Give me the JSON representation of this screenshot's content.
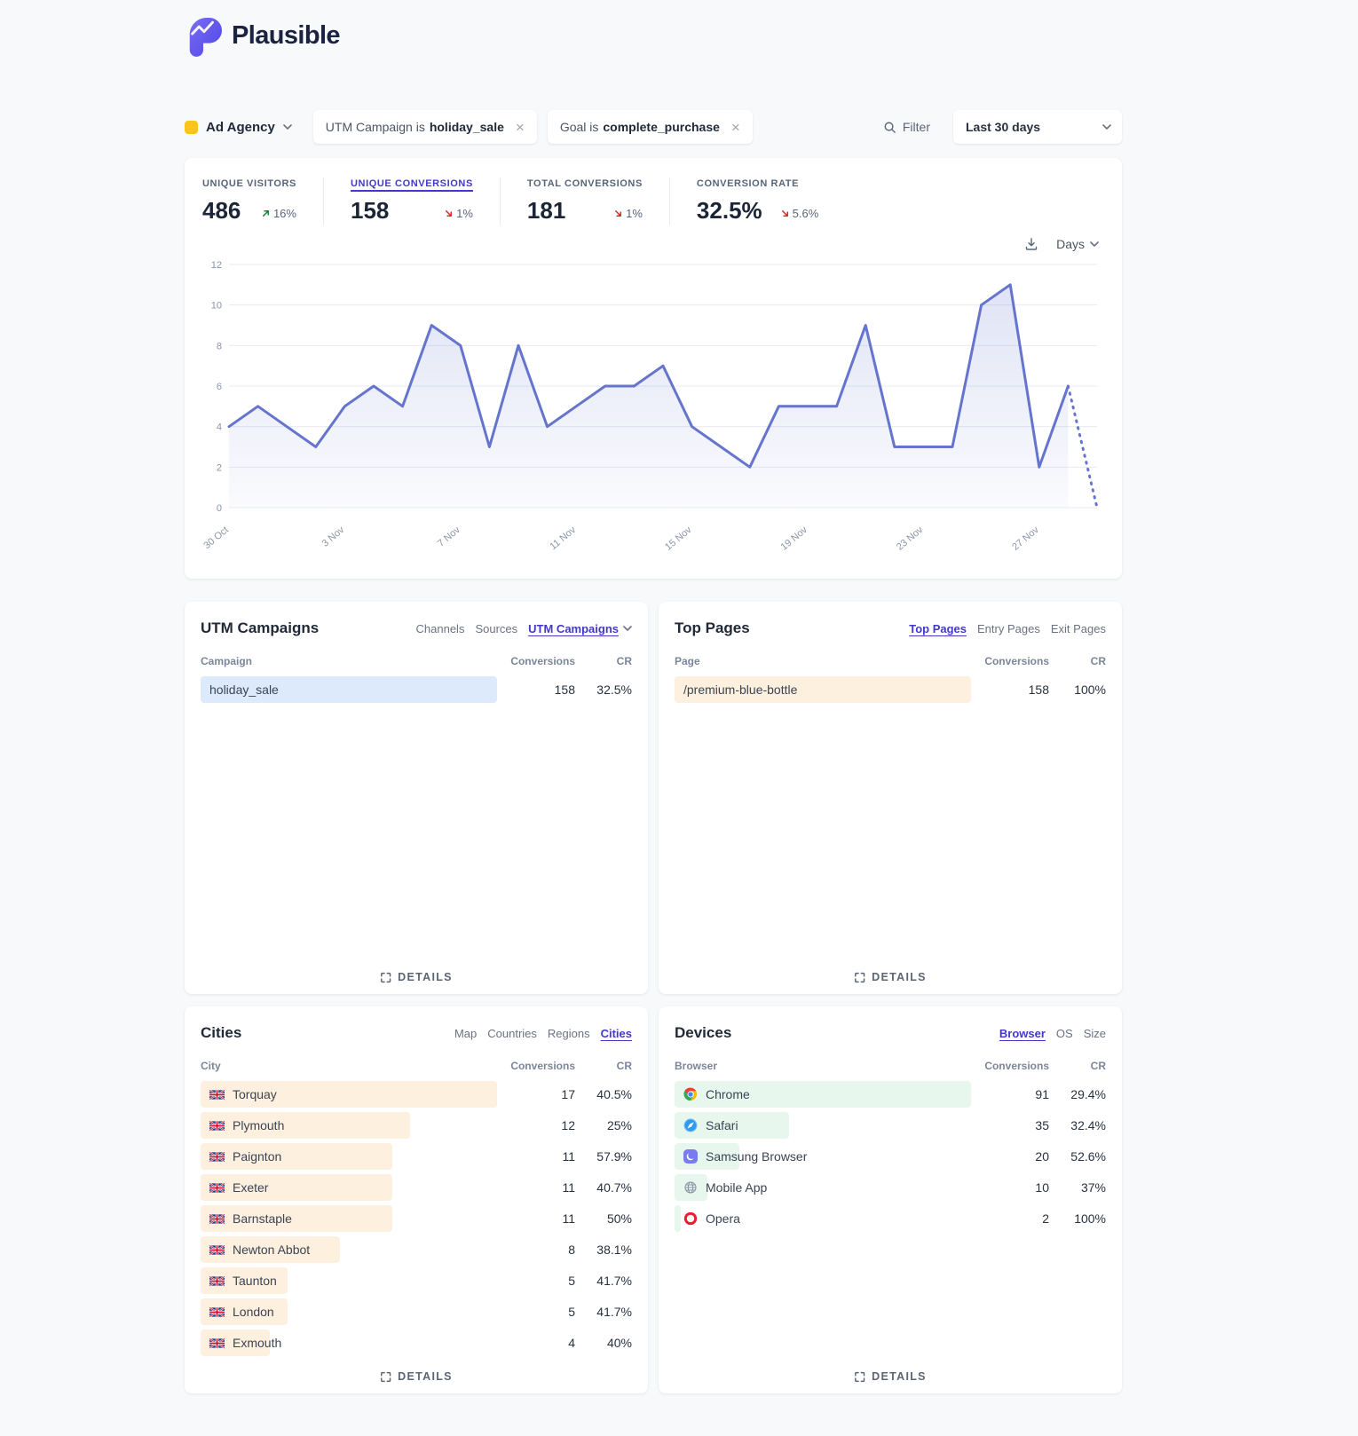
{
  "brand": {
    "name": "Plausible"
  },
  "filter_bar": {
    "site_name": "Ad Agency",
    "chips": [
      {
        "prefix": "UTM Campaign is",
        "value": "holiday_sale"
      },
      {
        "prefix": "Goal is",
        "value": "complete_purchase"
      }
    ],
    "filter_label": "Filter",
    "date_range": "Last 30 days"
  },
  "stats": [
    {
      "label": "UNIQUE VISITORS",
      "value": "486",
      "change": "16%",
      "direction": "up",
      "selected": false
    },
    {
      "label": "UNIQUE CONVERSIONS",
      "value": "158",
      "change": "1%",
      "direction": "down",
      "selected": true
    },
    {
      "label": "TOTAL CONVERSIONS",
      "value": "181",
      "change": "1%",
      "direction": "down",
      "selected": false
    },
    {
      "label": "CONVERSION RATE",
      "value": "32.5%",
      "change": "5.6%",
      "direction": "down",
      "selected": false
    }
  ],
  "chart_controls": {
    "interval": "Days"
  },
  "chart_data": {
    "type": "line",
    "metric": "Unique conversions",
    "values": [
      4,
      5,
      4,
      3,
      5,
      6,
      5,
      9,
      8,
      3,
      8,
      4,
      5,
      6,
      6,
      7,
      4,
      3,
      2,
      5,
      5,
      5,
      9,
      3,
      3,
      3,
      10,
      11,
      2,
      6
    ],
    "dotted_tail_value": 0,
    "x_labels": [
      "30 Oct",
      "3 Nov",
      "7 Nov",
      "11 Nov",
      "15 Nov",
      "19 Nov",
      "23 Nov",
      "27 Nov"
    ],
    "x_label_indices": [
      0,
      4,
      8,
      12,
      16,
      20,
      24,
      28
    ],
    "ylim": [
      0,
      12
    ],
    "ytick": 2,
    "xlabel": "",
    "ylabel": "",
    "grid": true,
    "legend": false,
    "line_color": "#6574cd"
  },
  "panels": {
    "utm_campaigns": {
      "title": "UTM Campaigns",
      "tabs": [
        {
          "label": "Channels",
          "selected": false
        },
        {
          "label": "Sources",
          "selected": false
        },
        {
          "label": "UTM Campaigns",
          "selected": true,
          "has_chevron": true
        }
      ],
      "columns": {
        "name": "Campaign",
        "conversions": "Conversions",
        "cr": "CR"
      },
      "bar_color": "#dceafc",
      "rows": [
        {
          "label": "holiday_sale",
          "conversions": "158",
          "cr": "32.5%",
          "bar_pct": 100
        }
      ],
      "details_label": "DETAILS"
    },
    "top_pages": {
      "title": "Top Pages",
      "tabs": [
        {
          "label": "Top Pages",
          "selected": true
        },
        {
          "label": "Entry Pages",
          "selected": false
        },
        {
          "label": "Exit Pages",
          "selected": false
        }
      ],
      "columns": {
        "name": "Page",
        "conversions": "Conversions",
        "cr": "CR"
      },
      "bar_color": "#fdf0df",
      "rows": [
        {
          "label": "/premium-blue-bottle",
          "conversions": "158",
          "cr": "100%",
          "bar_pct": 100
        }
      ],
      "details_label": "DETAILS"
    },
    "cities": {
      "title": "Cities",
      "tabs": [
        {
          "label": "Map",
          "selected": false
        },
        {
          "label": "Countries",
          "selected": false
        },
        {
          "label": "Regions",
          "selected": false
        },
        {
          "label": "Cities",
          "selected": true
        }
      ],
      "columns": {
        "name": "City",
        "conversions": "Conversions",
        "cr": "CR"
      },
      "bar_color": "#fdf0df",
      "rows": [
        {
          "label": "Torquay",
          "icon": "uk-flag",
          "conversions": "17",
          "cr": "40.5%",
          "bar_pct": 100
        },
        {
          "label": "Plymouth",
          "icon": "uk-flag",
          "conversions": "12",
          "cr": "25%",
          "bar_pct": 70.6
        },
        {
          "label": "Paignton",
          "icon": "uk-flag",
          "conversions": "11",
          "cr": "57.9%",
          "bar_pct": 64.7
        },
        {
          "label": "Exeter",
          "icon": "uk-flag",
          "conversions": "11",
          "cr": "40.7%",
          "bar_pct": 64.7
        },
        {
          "label": "Barnstaple",
          "icon": "uk-flag",
          "conversions": "11",
          "cr": "50%",
          "bar_pct": 64.7
        },
        {
          "label": "Newton Abbot",
          "icon": "uk-flag",
          "conversions": "8",
          "cr": "38.1%",
          "bar_pct": 47.1
        },
        {
          "label": "Taunton",
          "icon": "uk-flag",
          "conversions": "5",
          "cr": "41.7%",
          "bar_pct": 29.4
        },
        {
          "label": "London",
          "icon": "uk-flag",
          "conversions": "5",
          "cr": "41.7%",
          "bar_pct": 29.4
        },
        {
          "label": "Exmouth",
          "icon": "uk-flag",
          "conversions": "4",
          "cr": "40%",
          "bar_pct": 23.5
        }
      ],
      "details_label": "DETAILS"
    },
    "devices": {
      "title": "Devices",
      "tabs": [
        {
          "label": "Browser",
          "selected": true
        },
        {
          "label": "OS",
          "selected": false
        },
        {
          "label": "Size",
          "selected": false
        }
      ],
      "columns": {
        "name": "Browser",
        "conversions": "Conversions",
        "cr": "CR"
      },
      "bar_color": "#e7f7ee",
      "rows": [
        {
          "label": "Chrome",
          "icon": "chrome",
          "conversions": "91",
          "cr": "29.4%",
          "bar_pct": 100
        },
        {
          "label": "Safari",
          "icon": "safari",
          "conversions": "35",
          "cr": "32.4%",
          "bar_pct": 38.5
        },
        {
          "label": "Samsung Browser",
          "icon": "samsung",
          "conversions": "20",
          "cr": "52.6%",
          "bar_pct": 22
        },
        {
          "label": "Mobile App",
          "icon": "globe",
          "conversions": "10",
          "cr": "37%",
          "bar_pct": 11
        },
        {
          "label": "Opera",
          "icon": "opera",
          "conversions": "2",
          "cr": "100%",
          "bar_pct": 2.2
        }
      ],
      "details_label": "DETAILS"
    }
  },
  "colors": {
    "accent_indigo": "#4338ca",
    "chart_line": "#6574cd",
    "site_favicon": "#fcc419",
    "positive_change": "#15803d",
    "negative_change": "#dc2626",
    "bar_blue": "#dceafc",
    "bar_orange": "#fdf0df",
    "bar_green": "#e7f7ee"
  }
}
